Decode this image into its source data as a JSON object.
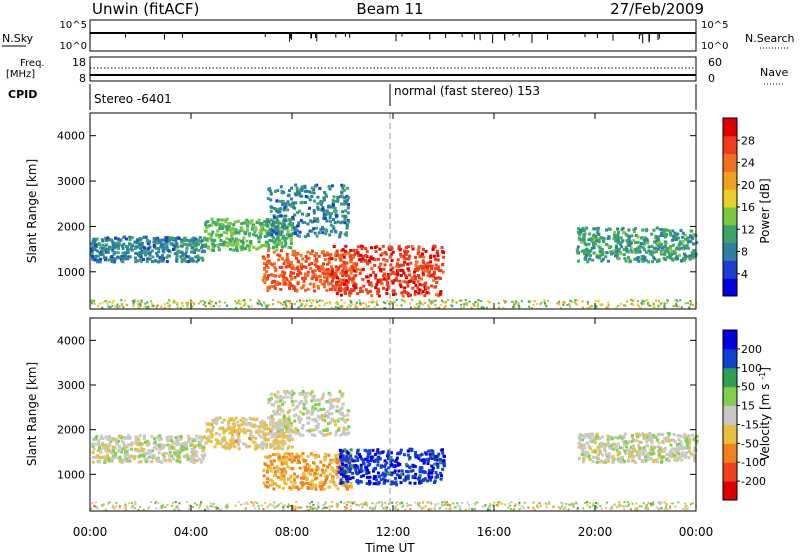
{
  "header": {
    "title": "Unwin (fitACF)",
    "beam": "Beam 11",
    "date": "27/Feb/2009"
  },
  "nsky_panel": {
    "label": "N.Sky",
    "ticks_left": [
      "10^5",
      "10^0"
    ],
    "ticks_right": [
      "10^5",
      "10^0"
    ],
    "right_label": "N.Search"
  },
  "freq_panel": {
    "label_line1": "Freq.",
    "label_line2": "[MHz]",
    "ticks_left": [
      "18",
      "8"
    ],
    "ticks_right": [
      "60",
      "0"
    ],
    "right_label": "Nave"
  },
  "cpid_panel": {
    "label": "CPID",
    "segments": [
      {
        "text": "Stereo -6401",
        "start_hour": 0
      },
      {
        "text": "normal (fast stereo) 153",
        "start_hour": 12
      }
    ]
  },
  "chart_data": [
    {
      "type": "heatmap",
      "title": "",
      "xlabel": "Time UT",
      "ylabel": "Slant Range [km]",
      "xlim": [
        0,
        24
      ],
      "ylim": [
        180,
        4500
      ],
      "x_ticks": [
        "00:00",
        "04:00",
        "08:00",
        "12:00",
        "16:00",
        "20:00",
        "00:00"
      ],
      "y_ticks": [
        1000,
        2000,
        3000,
        4000
      ],
      "colorbar": {
        "label": "Power [dB]",
        "ticks": [
          "28",
          "24",
          "20",
          "16",
          "12",
          "8",
          "4"
        ],
        "range": [
          0,
          30
        ],
        "colors": [
          "#0000e0",
          "#1a3fd0",
          "#2e7fa0",
          "#3aa46a",
          "#7cc840",
          "#e8d028",
          "#f0a020",
          "#f07020",
          "#ee3c1c",
          "#e00000"
        ]
      },
      "echo_regions": [
        {
          "t0": 0.0,
          "t1": 4.5,
          "r0": 1250,
          "r1": 1800,
          "value": 8
        },
        {
          "t0": 4.5,
          "t1": 8.0,
          "r0": 1500,
          "r1": 2200,
          "value": 12
        },
        {
          "t0": 7.0,
          "t1": 10.2,
          "r0": 1800,
          "r1": 2950,
          "value": 8
        },
        {
          "t0": 6.8,
          "t1": 10.5,
          "r0": 600,
          "r1": 1500,
          "value": 24
        },
        {
          "t0": 9.5,
          "t1": 14.0,
          "r0": 500,
          "r1": 1600,
          "value": 26
        },
        {
          "t0": 19.2,
          "t1": 24.0,
          "r0": 1250,
          "r1": 2000,
          "value": 10
        }
      ]
    },
    {
      "type": "heatmap",
      "title": "",
      "xlabel": "Time UT",
      "ylabel": "Slant Range [km]",
      "xlim": [
        0,
        24
      ],
      "ylim": [
        180,
        4500
      ],
      "x_ticks": [
        "00:00",
        "04:00",
        "08:00",
        "12:00",
        "16:00",
        "20:00",
        "00:00"
      ],
      "y_ticks": [
        1000,
        2000,
        3000,
        4000
      ],
      "colorbar": {
        "label": "Velocity [m s^-1]",
        "ticks": [
          "200",
          "100",
          "50",
          "15",
          "-15",
          "-50",
          "-100",
          "-200"
        ],
        "range": [
          -250,
          250
        ],
        "colors": [
          "#e00000",
          "#f04020",
          "#f08020",
          "#e8c040",
          "#c8c8c8",
          "#80d050",
          "#30a050",
          "#1040d0",
          "#0000e0"
        ]
      },
      "echo_regions": [
        {
          "t0": 0.0,
          "t1": 4.5,
          "r0": 1300,
          "r1": 1900,
          "value": 0
        },
        {
          "t0": 4.5,
          "t1": 8.0,
          "r0": 1600,
          "r1": 2300,
          "value": -40
        },
        {
          "t0": 7.0,
          "t1": 10.2,
          "r0": 1900,
          "r1": 2900,
          "value": 0
        },
        {
          "t0": 6.8,
          "t1": 10.3,
          "r0": 700,
          "r1": 1500,
          "value": -80
        },
        {
          "t0": 9.8,
          "t1": 14.0,
          "r0": 800,
          "r1": 1600,
          "value": 180
        },
        {
          "t0": 19.3,
          "t1": 24.0,
          "r0": 1300,
          "r1": 1950,
          "value": 0
        }
      ]
    }
  ]
}
